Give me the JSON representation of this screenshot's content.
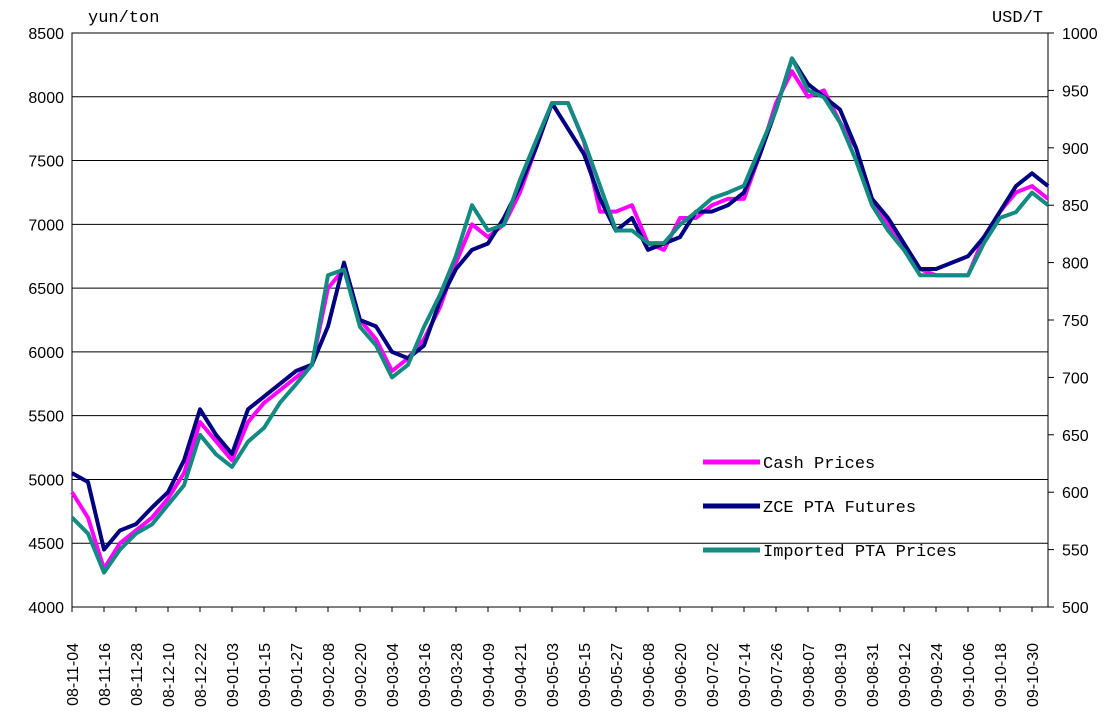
{
  "chart_data": {
    "type": "line",
    "y_label": "yun/ton",
    "y2_label": "USD/T",
    "categories": [
      "08-11-04",
      null,
      "08-11-16",
      null,
      "08-11-28",
      null,
      "08-12-10",
      null,
      "08-12-22",
      null,
      "09-01-03",
      null,
      "09-01-15",
      null,
      "09-01-27",
      null,
      "09-02-08",
      null,
      "09-02-20",
      null,
      "09-03-04",
      null,
      "09-03-16",
      null,
      "09-03-28",
      null,
      "09-04-09",
      null,
      "09-04-21",
      null,
      "09-05-03",
      null,
      "09-05-15",
      null,
      "09-05-27",
      null,
      "09-06-08",
      null,
      "09-06-20",
      null,
      "09-07-02",
      null,
      "09-07-14",
      null,
      "09-07-26",
      null,
      "09-08-07",
      null,
      "09-08-19",
      null,
      "09-08-31",
      null,
      "09-09-12",
      null,
      "09-09-24",
      null,
      "09-10-06",
      null,
      "09-10-18",
      null,
      "09-10-30",
      null
    ],
    "series": [
      {
        "name": "Cash Prices",
        "color": "#ff00ff",
        "values": [
          4900,
          4700,
          4300,
          4500,
          4600,
          4700,
          4850,
          5050,
          5450,
          5300,
          5150,
          5450,
          5600,
          5700,
          5800,
          5900,
          6500,
          6650,
          6250,
          6100,
          5850,
          5950,
          6100,
          6350,
          6700,
          7000,
          6900,
          7000,
          7250,
          7600,
          7950,
          7950,
          7650,
          7100,
          7100,
          7150,
          6850,
          6800,
          7050,
          7050,
          7150,
          7200,
          7200,
          7550,
          7950,
          8200,
          8000,
          8050,
          7800,
          7600,
          7200,
          7000,
          6800,
          6650,
          6600,
          6600,
          6600,
          6900,
          7100,
          7250,
          7300,
          7200
        ]
      },
      {
        "name": "ZCE PTA Futures",
        "color": "#000080",
        "values": [
          5050,
          4980,
          4450,
          4600,
          4650,
          4780,
          4900,
          5150,
          5550,
          5350,
          5200,
          5550,
          5650,
          5750,
          5850,
          5900,
          6200,
          6700,
          6250,
          6200,
          6000,
          5950,
          6050,
          6400,
          6650,
          6800,
          6850,
          7050,
          7300,
          7600,
          7950,
          7750,
          7550,
          7200,
          6950,
          7050,
          6800,
          6850,
          6900,
          7100,
          7100,
          7150,
          7250,
          7550,
          7900,
          8300,
          8100,
          8000,
          7900,
          7600,
          7200,
          7050,
          6850,
          6650,
          6650,
          6700,
          6750,
          6900,
          7100,
          7300,
          7400,
          7300
        ]
      },
      {
        "name": "Imported PTA Prices",
        "color": "#138a82",
        "axis": "y2",
        "values": [
          578,
          564,
          530,
          550,
          564,
          572,
          589,
          606,
          650,
          633,
          622,
          644,
          656,
          678,
          694,
          711,
          789,
          794,
          744,
          728,
          700,
          711,
          744,
          772,
          806,
          850,
          828,
          833,
          872,
          906,
          939,
          939,
          906,
          867,
          828,
          828,
          817,
          817,
          833,
          844,
          856,
          861,
          867,
          900,
          933,
          978,
          950,
          944,
          922,
          889,
          850,
          828,
          811,
          789,
          789,
          789,
          789,
          817,
          839,
          844,
          861,
          850
        ]
      }
    ],
    "ylim": [
      4000,
      8500
    ],
    "yticks": [
      4000,
      4500,
      5000,
      5500,
      6000,
      6500,
      7000,
      7500,
      8000,
      8500
    ],
    "y2lim": [
      500,
      1000
    ],
    "y2ticks": [
      500,
      550,
      600,
      650,
      700,
      750,
      800,
      850,
      900,
      950,
      1000
    ],
    "grid": true
  }
}
